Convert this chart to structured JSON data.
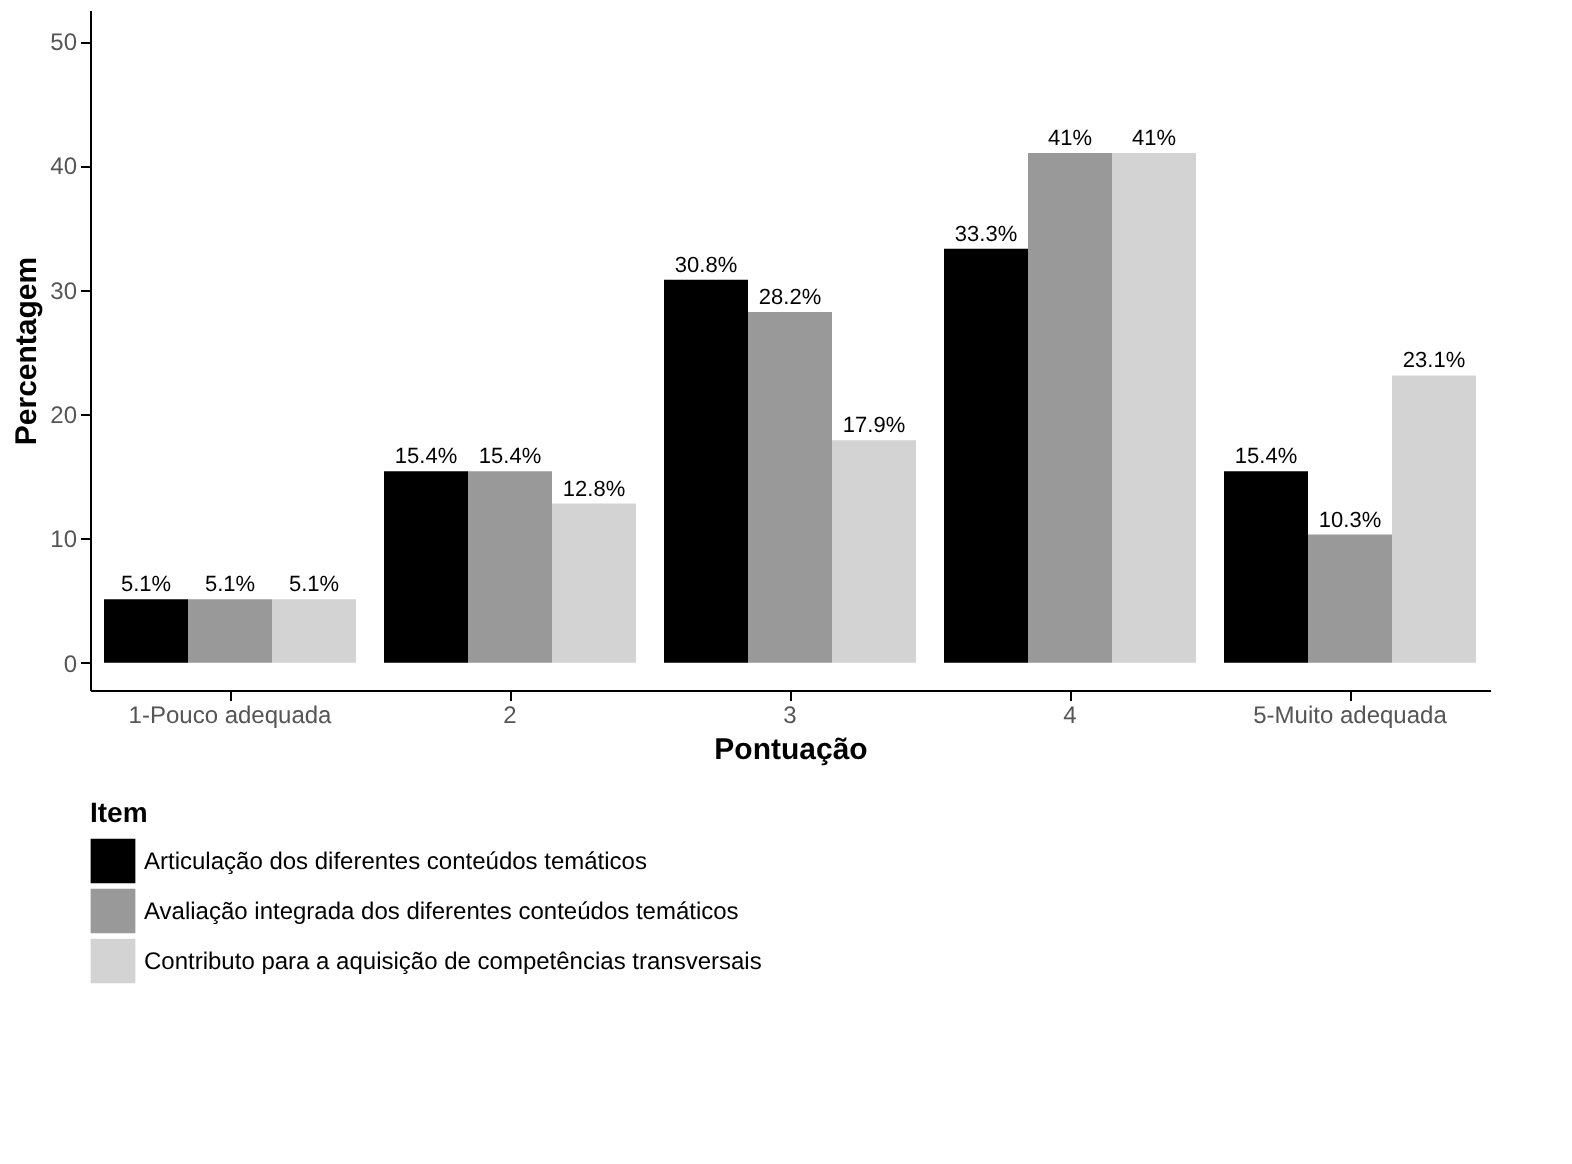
{
  "chart_data": {
    "type": "bar",
    "xlabel": "Pontuação",
    "ylabel": "Percentagem",
    "legend_title": "Item",
    "legend": "bottom",
    "grid": false,
    "categories": [
      "1-Pouco adequada",
      "2",
      "3",
      "4",
      "5-Muito adequada"
    ],
    "series": [
      {
        "name": "Articulação dos diferentes conteúdos temáticos",
        "color": "#000000",
        "values": [
          5.1,
          15.4,
          30.8,
          33.3,
          15.4
        ],
        "value_labels": [
          "5.1%",
          "15.4%",
          "30.8%",
          "33.3%",
          "15.4%"
        ]
      },
      {
        "name": "Avaliação integrada dos diferentes conteúdos temáticos",
        "color": "#999999",
        "values": [
          5.1,
          15.4,
          28.2,
          41,
          10.3
        ],
        "value_labels": [
          "5.1%",
          "15.4%",
          "28.2%",
          "41%",
          "10.3%"
        ]
      },
      {
        "name": "Contributo para a aquisição de competências transversais",
        "color": "#d3d3d3",
        "values": [
          5.1,
          12.8,
          17.9,
          41,
          23.1
        ],
        "value_labels": [
          "5.1%",
          "12.8%",
          "17.9%",
          "41%",
          "23.1%"
        ]
      }
    ],
    "ylim": [
      -2.2,
      52.5
    ],
    "yticks": [
      0,
      10,
      20,
      30,
      40,
      50
    ]
  }
}
